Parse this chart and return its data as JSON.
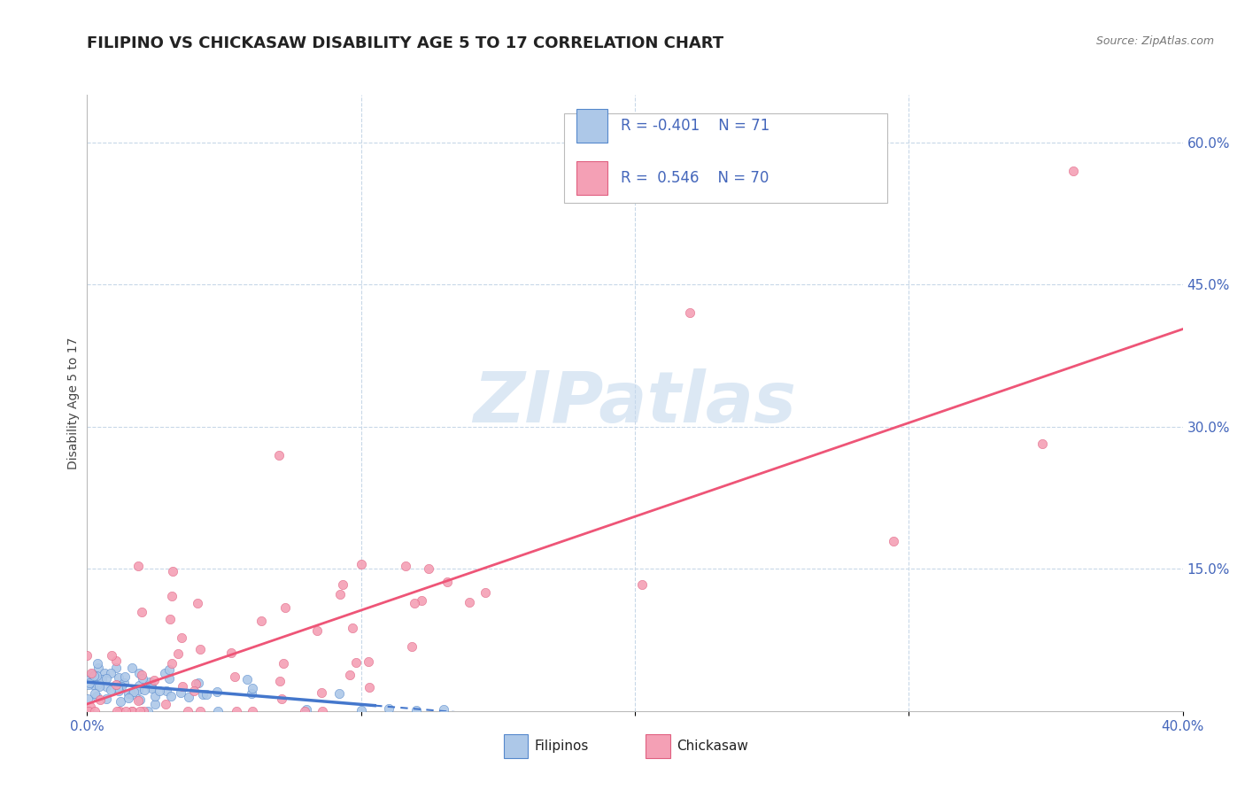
{
  "title": "FILIPINO VS CHICKASAW DISABILITY AGE 5 TO 17 CORRELATION CHART",
  "source": "Source: ZipAtlas.com",
  "ylabel": "Disability Age 5 to 17",
  "filipinos_R": -0.401,
  "filipinos_N": 71,
  "chickasaw_R": 0.546,
  "chickasaw_N": 70,
  "filipino_color": "#adc8e8",
  "chickasaw_color": "#f4a0b5",
  "filipino_edge_color": "#5588cc",
  "chickasaw_edge_color": "#e06080",
  "filipino_line_color": "#4477cc",
  "chickasaw_line_color": "#ee5577",
  "watermark_color": "#c5d9ee",
  "background_color": "#ffffff",
  "tick_color": "#4466bb",
  "grid_color": "#c8d8e8",
  "title_fontsize": 13,
  "axis_label_fontsize": 10,
  "tick_fontsize": 11
}
